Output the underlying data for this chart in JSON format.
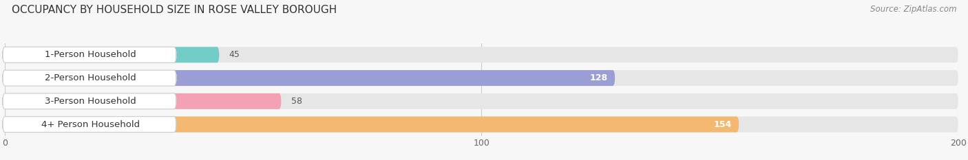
{
  "title": "OCCUPANCY BY HOUSEHOLD SIZE IN ROSE VALLEY BOROUGH",
  "source": "Source: ZipAtlas.com",
  "categories": [
    "1-Person Household",
    "2-Person Household",
    "3-Person Household",
    "4+ Person Household"
  ],
  "values": [
    45,
    128,
    58,
    154
  ],
  "bar_colors": [
    "#72cdc9",
    "#9b9ed4",
    "#f4a0b5",
    "#f5b870"
  ],
  "bar_bg_color": "#e6e6e6",
  "xlim": [
    0,
    200
  ],
  "xticks": [
    0,
    100,
    200
  ],
  "value_color_inside": "#ffffff",
  "value_color_outside": "#555555",
  "title_fontsize": 11,
  "source_fontsize": 8.5,
  "bar_label_fontsize": 9.5,
  "value_fontsize": 9,
  "bar_height": 0.68,
  "background_color": "#f7f7f7",
  "label_box_color": "#ffffff",
  "label_box_edge": "#cccccc",
  "grid_color": "#cccccc",
  "text_color": "#333333",
  "tick_color": "#666666"
}
